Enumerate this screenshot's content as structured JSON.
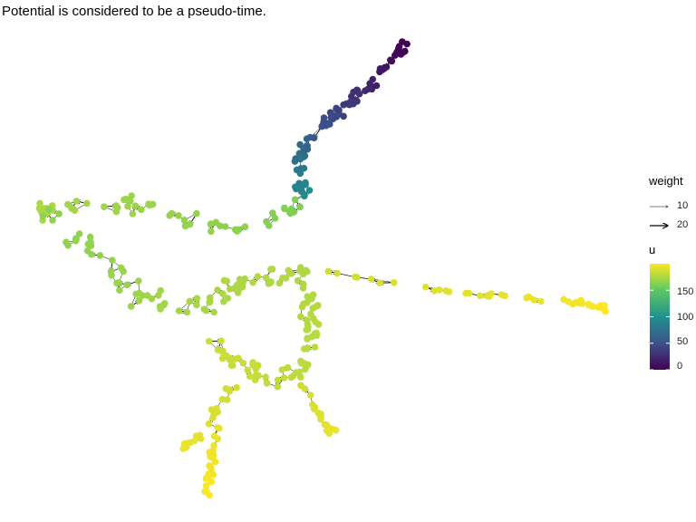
{
  "title": "Potential is considered to be a pseudo-time.",
  "chart_data": {
    "type": "network",
    "legend": {
      "placement": "right",
      "weight": {
        "title": "weight",
        "entries": [
          10,
          20
        ]
      },
      "colorbar": {
        "title": "u",
        "ticks": [
          0,
          50,
          100,
          150
        ],
        "range": [
          0,
          200
        ],
        "palette": [
          "#440154",
          "#3b528b",
          "#21908c",
          "#5dc963",
          "#fde725"
        ]
      }
    }
  }
}
